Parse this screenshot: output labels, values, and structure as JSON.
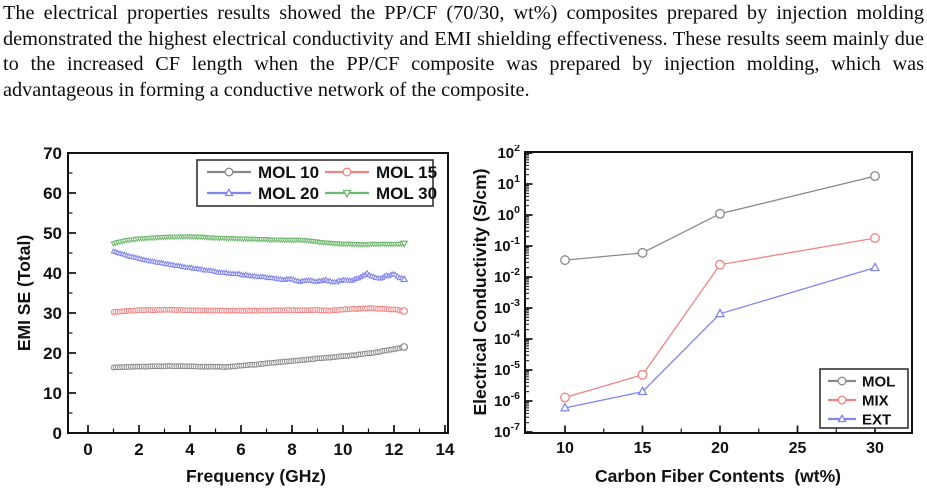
{
  "paragraph": "The electrical properties results showed the PP/CF (70/30, wt%) composites prepared by injection molding demonstrated the highest electrical conductivity and EMI shielding effectiveness. These results seem mainly due to the increased CF length when the PP/CF composite was prepared by injection molding, which was advantageous in forming a conductive network of the composite.",
  "colors": {
    "gray": "#8a8a8a",
    "red": "#f28383",
    "blue": "#8085ef",
    "green": "#6fb86f",
    "axis": "#111111"
  },
  "chart_data": [
    {
      "id": "emi",
      "type": "line",
      "title": "",
      "xlabel": "Frequency (GHz)",
      "ylabel": "EMI SE (Total)",
      "xlim": [
        0,
        14
      ],
      "ylim": [
        0,
        70
      ],
      "x_ticks": [
        0,
        2,
        4,
        6,
        8,
        10,
        12,
        14
      ],
      "x_minor_step": 1,
      "y_ticks": [
        0,
        10,
        20,
        30,
        40,
        50,
        60,
        70
      ],
      "y_minor_step": 5,
      "grid": false,
      "legend_position": "top-center",
      "legend": [
        {
          "label": "MOL 10",
          "color_key": "gray",
          "marker": "circle"
        },
        {
          "label": "MOL 15",
          "color_key": "red",
          "marker": "circle"
        },
        {
          "label": "MOL 20",
          "color_key": "blue",
          "marker": "triangle-up"
        },
        {
          "label": "MOL 30",
          "color_key": "green",
          "marker": "triangle-down"
        }
      ],
      "series": [
        {
          "name": "MOL 10",
          "color_key": "gray",
          "marker": "circle",
          "noise": [
            0.1,
            0.16
          ],
          "points": [
            [
              1,
              16.4
            ],
            [
              2,
              16.6
            ],
            [
              3,
              16.7
            ],
            [
              4,
              16.7
            ],
            [
              4.5,
              16.6
            ],
            [
              5,
              16.6
            ],
            [
              5.5,
              16.5
            ],
            [
              6,
              16.8
            ],
            [
              6.5,
              17.1
            ],
            [
              7,
              17.4
            ],
            [
              7.5,
              17.7
            ],
            [
              8,
              18.0
            ],
            [
              8.5,
              18.3
            ],
            [
              9,
              18.6
            ],
            [
              9.5,
              18.9
            ],
            [
              10,
              19.2
            ],
            [
              10.5,
              19.5
            ],
            [
              11,
              19.9
            ],
            [
              11.5,
              20.4
            ],
            [
              12,
              21.0
            ],
            [
              12.4,
              21.5
            ]
          ]
        },
        {
          "name": "MOL 15",
          "color_key": "red",
          "marker": "circle",
          "noise": [
            0.1,
            0.14
          ],
          "points": [
            [
              1,
              30.2
            ],
            [
              1.5,
              30.5
            ],
            [
              2,
              30.7
            ],
            [
              3,
              30.8
            ],
            [
              4,
              30.7
            ],
            [
              5,
              30.6
            ],
            [
              6,
              30.6
            ],
            [
              7,
              30.6
            ],
            [
              8,
              30.7
            ],
            [
              9,
              30.7
            ],
            [
              9.5,
              30.6
            ],
            [
              10,
              30.9
            ],
            [
              10.5,
              31.0
            ],
            [
              11,
              31.2
            ],
            [
              11.5,
              31.0
            ],
            [
              12,
              30.9
            ],
            [
              12.4,
              30.5
            ]
          ]
        },
        {
          "name": "MOL 20",
          "color_key": "blue",
          "marker": "triangle-up",
          "noise": [
            0.1,
            0.45
          ],
          "points": [
            [
              1,
              45.4
            ],
            [
              1.5,
              44.4
            ],
            [
              2,
              43.6
            ],
            [
              2.5,
              42.9
            ],
            [
              3,
              42.3
            ],
            [
              3.5,
              41.8
            ],
            [
              4,
              41.3
            ],
            [
              4.5,
              40.8
            ],
            [
              5,
              40.3
            ],
            [
              5.5,
              39.9
            ],
            [
              6,
              39.6
            ],
            [
              6.5,
              39.2
            ],
            [
              7,
              38.8
            ],
            [
              7.5,
              38.4
            ],
            [
              8,
              38.4
            ],
            [
              8.3,
              37.9
            ],
            [
              8.7,
              38.2
            ],
            [
              9,
              37.8
            ],
            [
              9.3,
              38.3
            ],
            [
              9.6,
              37.7
            ],
            [
              10,
              38.2
            ],
            [
              10.3,
              38.0
            ],
            [
              10.6,
              38.6
            ],
            [
              10.9,
              39.9
            ],
            [
              11.1,
              39.4
            ],
            [
              11.4,
              38.7
            ],
            [
              11.7,
              39.3
            ],
            [
              12,
              39.6
            ],
            [
              12.2,
              38.9
            ],
            [
              12.4,
              38.4
            ]
          ]
        },
        {
          "name": "MOL 30",
          "color_key": "green",
          "marker": "triangle-down",
          "noise": [
            0.08,
            0.14
          ],
          "points": [
            [
              1,
              47.4
            ],
            [
              1.5,
              48.2
            ],
            [
              2,
              48.6
            ],
            [
              2.5,
              48.8
            ],
            [
              3,
              49.0
            ],
            [
              3.5,
              49.1
            ],
            [
              4,
              49.1
            ],
            [
              4.5,
              49.0
            ],
            [
              5,
              48.8
            ],
            [
              5.5,
              48.7
            ],
            [
              6,
              48.6
            ],
            [
              6.5,
              48.5
            ],
            [
              7,
              48.4
            ],
            [
              7.5,
              48.3
            ],
            [
              8,
              48.3
            ],
            [
              8.5,
              48.2
            ],
            [
              9,
              47.8
            ],
            [
              9.5,
              47.5
            ],
            [
              10,
              47.3
            ],
            [
              10.5,
              47.2
            ],
            [
              11,
              47.2
            ],
            [
              11.5,
              47.3
            ],
            [
              12,
              47.2
            ],
            [
              12.4,
              47.4
            ]
          ]
        }
      ]
    },
    {
      "id": "cond",
      "type": "line",
      "title": "",
      "xlabel": "Carbon Fiber Contents  (wt%)",
      "ylabel": "Electrical Conductivity (S/cm)",
      "y_scale": "log",
      "xlim": [
        10,
        30
      ],
      "ylim": [
        1e-07,
        100
      ],
      "x_ticks": [
        10,
        15,
        20,
        25,
        30
      ],
      "x_minor_step": 2.5,
      "y_exponents": [
        2,
        1,
        0,
        -1,
        -2,
        -3,
        -4,
        -5,
        -6,
        -7
      ],
      "grid": false,
      "legend_position": "bottom-right",
      "legend": [
        {
          "label": "MOL",
          "color_key": "gray",
          "marker": "circle"
        },
        {
          "label": "MIX",
          "color_key": "red",
          "marker": "circle"
        },
        {
          "label": "EXT",
          "color_key": "blue",
          "marker": "triangle-up"
        }
      ],
      "series": [
        {
          "name": "MOL",
          "color_key": "gray",
          "marker": "circle",
          "points": [
            [
              10,
              0.035
            ],
            [
              15,
              0.06
            ],
            [
              20,
              1.1
            ],
            [
              30,
              18
            ]
          ]
        },
        {
          "name": "MIX",
          "color_key": "red",
          "marker": "circle",
          "points": [
            [
              10,
              1.3e-06
            ],
            [
              15,
              7e-06
            ],
            [
              20,
              0.025
            ],
            [
              30,
              0.18
            ]
          ]
        },
        {
          "name": "EXT",
          "color_key": "blue",
          "marker": "triangle-up",
          "points": [
            [
              10,
              6e-07
            ],
            [
              15,
              2e-06
            ],
            [
              20,
              0.00065
            ],
            [
              30,
              0.02
            ]
          ]
        }
      ]
    }
  ]
}
